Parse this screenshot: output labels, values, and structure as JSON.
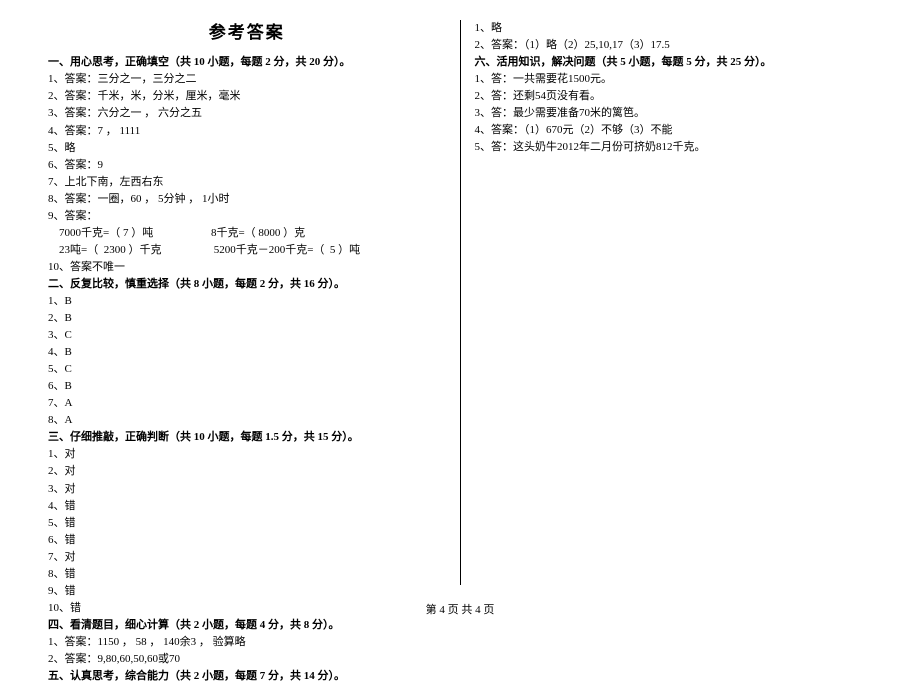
{
  "title": "参考答案",
  "footer": "第 4 页 共 4 页",
  "left": {
    "s1_head": "一、用心思考，正确填空（共 10 小题，每题 2 分，共 20 分）。",
    "s1_items": [
      "1、答案：三分之一，三分之二",
      "2、答案：千米，米，分米，厘米，毫米",
      "3、答案：六分之一 ， 六分之五",
      "4、答案：7 ， 1111",
      "5、略",
      "6、答案：9",
      "7、上北下南，左西右东",
      "8、答案：一圈，60 ， 5分钟 ， 1小时",
      "9、答案："
    ],
    "s1_9a": "    7000千克=（ 7 ）吨                     8千克=（ 8000 ）克",
    "s1_9b": "    23吨=（  2300 ）千克                   5200千克－200千克=（  5 ）吨",
    "s1_10": "10、答案不唯一",
    "s2_head": "二、反复比较，慎重选择（共 8 小题，每题 2 分，共 16 分）。",
    "s2_items": [
      "1、B",
      "2、B",
      "3、C",
      "4、B",
      "5、C",
      "6、B",
      "7、A",
      "8、A"
    ],
    "s3_head": "三、仔细推敲，正确判断（共 10 小题，每题 1.5 分，共 15 分）。",
    "s3_items": [
      "1、对",
      "2、对",
      "3、对",
      "4、错",
      "5、错",
      "6、错",
      "7、对",
      "8、错",
      "9、错",
      "10、错"
    ],
    "s4_head": "四、看清题目，细心计算（共 2 小题，每题 4 分，共 8 分）。",
    "s4_items": [
      "1、答案：1150 ， 58 ， 140余3 ， 验算略",
      "2、答案：9,80,60,50,60或70"
    ],
    "s5_head": "五、认真思考，综合能力（共 2 小题，每题 7 分，共 14 分）。"
  },
  "right": {
    "s5_items": [
      "1、略",
      "2、答案：（1）略（2）25,10,17（3）17.5"
    ],
    "s6_head": "六、活用知识，解决问题（共 5 小题，每题 5 分，共 25 分）。",
    "s6_items": [
      "1、答：一共需要花1500元。",
      "2、答：还剩54页没有看。",
      "3、答：最少需要准备70米的篱笆。",
      "4、答案：（1）670元（2）不够（3）不能",
      "5、答：这头奶牛2012年二月份可挤奶812千克。"
    ]
  }
}
